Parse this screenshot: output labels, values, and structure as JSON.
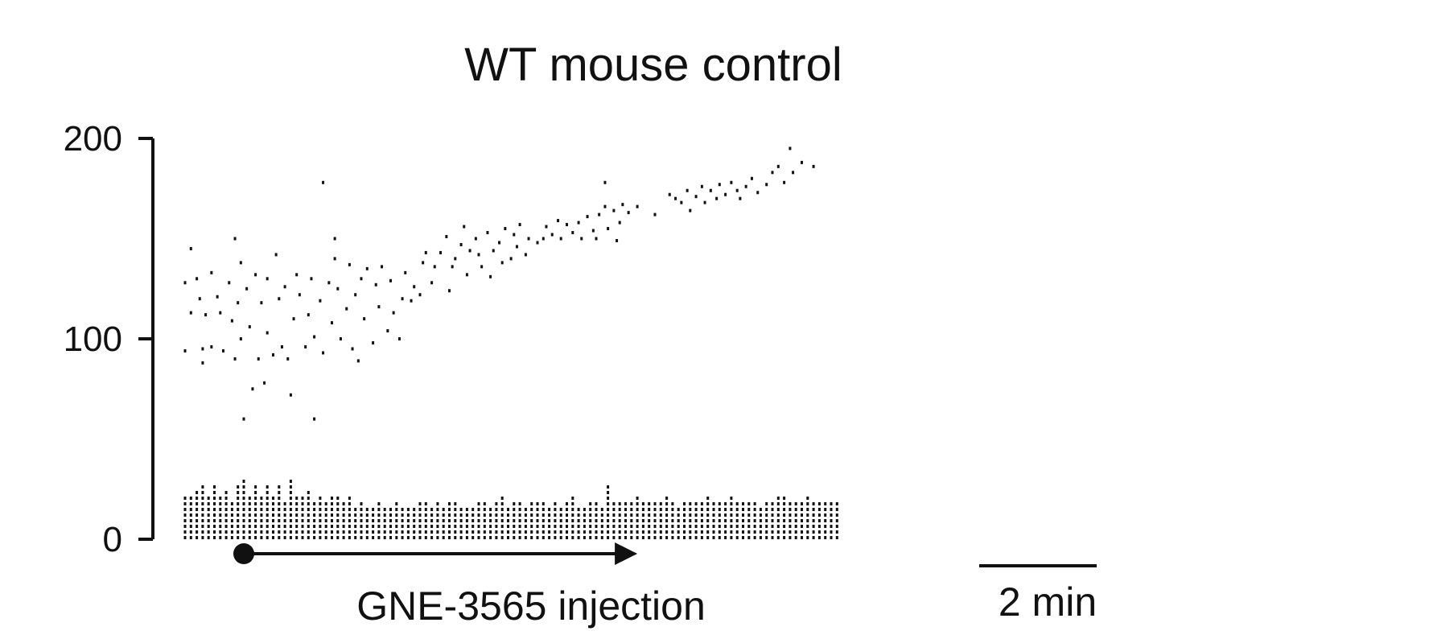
{
  "chart_data": {
    "type": "scatter",
    "title": "WT mouse control",
    "xlabel": "",
    "ylabel": "",
    "ylim": [
      0,
      200
    ],
    "yticks": [
      0,
      100,
      200
    ],
    "x_unit": "min",
    "xlim": [
      -0.25,
      12.3
    ],
    "grid": false,
    "legend": "none",
    "marker_color": "#111111",
    "annotations": {
      "injection_label": "GNE-3565 injection",
      "injection_start": 1.0,
      "injection_end": 7.7,
      "scalebar_label": "2 min",
      "scalebar_min": 2
    },
    "upper_band": [
      [
        0.0,
        128
      ],
      [
        0.0,
        94
      ],
      [
        0.1,
        113
      ],
      [
        0.1,
        145
      ],
      [
        0.2,
        130
      ],
      [
        0.25,
        120
      ],
      [
        0.3,
        95
      ],
      [
        0.3,
        88
      ],
      [
        0.35,
        112
      ],
      [
        0.45,
        133
      ],
      [
        0.45,
        96
      ],
      [
        0.55,
        121
      ],
      [
        0.6,
        113
      ],
      [
        0.65,
        94
      ],
      [
        0.75,
        128
      ],
      [
        0.8,
        109
      ],
      [
        0.85,
        150
      ],
      [
        0.85,
        90
      ],
      [
        0.9,
        118
      ],
      [
        0.95,
        138
      ],
      [
        0.95,
        100
      ],
      [
        1.0,
        60
      ],
      [
        1.05,
        125
      ],
      [
        1.1,
        106
      ],
      [
        1.15,
        75
      ],
      [
        1.2,
        132
      ],
      [
        1.25,
        90
      ],
      [
        1.3,
        118
      ],
      [
        1.35,
        78
      ],
      [
        1.4,
        130
      ],
      [
        1.4,
        103
      ],
      [
        1.5,
        92
      ],
      [
        1.55,
        142
      ],
      [
        1.6,
        120
      ],
      [
        1.65,
        96
      ],
      [
        1.7,
        126
      ],
      [
        1.75,
        90
      ],
      [
        1.8,
        72
      ],
      [
        1.85,
        110
      ],
      [
        1.9,
        132
      ],
      [
        1.95,
        122
      ],
      [
        2.05,
        96
      ],
      [
        2.1,
        112
      ],
      [
        2.15,
        130
      ],
      [
        2.2,
        60
      ],
      [
        2.2,
        101
      ],
      [
        2.3,
        119
      ],
      [
        2.35,
        178
      ],
      [
        2.35,
        93
      ],
      [
        2.45,
        128
      ],
      [
        2.5,
        108
      ],
      [
        2.55,
        150
      ],
      [
        2.55,
        140
      ],
      [
        2.6,
        125
      ],
      [
        2.65,
        100
      ],
      [
        2.75,
        115
      ],
      [
        2.8,
        137
      ],
      [
        2.85,
        95
      ],
      [
        2.9,
        122
      ],
      [
        2.95,
        89
      ],
      [
        3.0,
        130
      ],
      [
        3.05,
        110
      ],
      [
        3.1,
        135
      ],
      [
        3.2,
        98
      ],
      [
        3.25,
        127
      ],
      [
        3.3,
        116
      ],
      [
        3.35,
        136
      ],
      [
        3.45,
        104
      ],
      [
        3.5,
        129
      ],
      [
        3.55,
        113
      ],
      [
        3.65,
        100
      ],
      [
        3.7,
        120
      ],
      [
        3.75,
        133
      ],
      [
        3.85,
        119
      ],
      [
        3.9,
        126
      ],
      [
        4.0,
        122
      ],
      [
        4.05,
        138
      ],
      [
        4.1,
        143
      ],
      [
        4.2,
        128
      ],
      [
        4.25,
        136
      ],
      [
        4.35,
        143
      ],
      [
        4.45,
        151
      ],
      [
        4.5,
        124
      ],
      [
        4.55,
        136
      ],
      [
        4.6,
        140
      ],
      [
        4.7,
        147
      ],
      [
        4.75,
        156
      ],
      [
        4.8,
        132
      ],
      [
        4.85,
        144
      ],
      [
        4.95,
        150
      ],
      [
        5.0,
        142
      ],
      [
        5.05,
        136
      ],
      [
        5.15,
        153
      ],
      [
        5.2,
        131
      ],
      [
        5.25,
        144
      ],
      [
        5.35,
        148
      ],
      [
        5.4,
        138
      ],
      [
        5.45,
        155
      ],
      [
        5.55,
        140
      ],
      [
        5.6,
        152
      ],
      [
        5.65,
        146
      ],
      [
        5.7,
        157
      ],
      [
        5.8,
        142
      ],
      [
        5.85,
        150
      ],
      [
        6.0,
        148
      ],
      [
        6.1,
        150
      ],
      [
        6.15,
        156
      ],
      [
        6.25,
        152
      ],
      [
        6.35,
        159
      ],
      [
        6.4,
        150
      ],
      [
        6.5,
        157
      ],
      [
        6.6,
        153
      ],
      [
        6.7,
        158
      ],
      [
        6.75,
        150
      ],
      [
        6.85,
        161
      ],
      [
        6.95,
        154
      ],
      [
        7.0,
        150
      ],
      [
        7.05,
        162
      ],
      [
        7.15,
        178
      ],
      [
        7.15,
        166
      ],
      [
        7.2,
        155
      ],
      [
        7.3,
        164
      ],
      [
        7.35,
        149
      ],
      [
        7.4,
        158
      ],
      [
        7.45,
        167
      ],
      [
        7.55,
        163
      ],
      [
        7.7,
        166
      ],
      [
        8.0,
        162
      ],
      [
        8.25,
        172
      ],
      [
        8.35,
        170
      ],
      [
        8.45,
        168
      ],
      [
        8.55,
        174
      ],
      [
        8.6,
        164
      ],
      [
        8.7,
        171
      ],
      [
        8.8,
        176
      ],
      [
        8.85,
        168
      ],
      [
        8.95,
        174
      ],
      [
        9.05,
        170
      ],
      [
        9.1,
        177
      ],
      [
        9.2,
        172
      ],
      [
        9.3,
        178
      ],
      [
        9.4,
        174
      ],
      [
        9.45,
        170
      ],
      [
        9.55,
        176
      ],
      [
        9.65,
        180
      ],
      [
        9.75,
        173
      ],
      [
        9.9,
        177
      ],
      [
        10.0,
        183
      ],
      [
        10.1,
        186
      ],
      [
        10.2,
        178
      ],
      [
        10.3,
        195
      ],
      [
        10.35,
        183
      ],
      [
        10.5,
        188
      ],
      [
        10.7,
        186
      ]
    ],
    "lower_band": [
      [
        0.0,
        24
      ],
      [
        0.1,
        22
      ],
      [
        0.2,
        26
      ],
      [
        0.3,
        29
      ],
      [
        0.4,
        23
      ],
      [
        0.5,
        28
      ],
      [
        0.6,
        23
      ],
      [
        0.7,
        25
      ],
      [
        0.8,
        20
      ],
      [
        0.9,
        27
      ],
      [
        1.0,
        31
      ],
      [
        1.1,
        24
      ],
      [
        1.2,
        29
      ],
      [
        1.3,
        22
      ],
      [
        1.4,
        28
      ],
      [
        1.5,
        24
      ],
      [
        1.6,
        29
      ],
      [
        1.7,
        21
      ],
      [
        1.8,
        31
      ],
      [
        1.9,
        23
      ],
      [
        2.0,
        22
      ],
      [
        2.1,
        25
      ],
      [
        2.2,
        21
      ],
      [
        2.3,
        24
      ],
      [
        2.4,
        20
      ],
      [
        2.5,
        23
      ],
      [
        2.6,
        22
      ],
      [
        2.7,
        19
      ],
      [
        2.8,
        24
      ],
      [
        2.9,
        18
      ],
      [
        3.0,
        19
      ],
      [
        3.1,
        18
      ],
      [
        3.2,
        17
      ],
      [
        3.3,
        19
      ],
      [
        3.4,
        18
      ],
      [
        3.5,
        17
      ],
      [
        3.6,
        19
      ],
      [
        3.7,
        18
      ],
      [
        3.8,
        17
      ],
      [
        3.9,
        18
      ],
      [
        4.0,
        20
      ],
      [
        4.1,
        19
      ],
      [
        4.2,
        18
      ],
      [
        4.3,
        21
      ],
      [
        4.4,
        17
      ],
      [
        4.5,
        20
      ],
      [
        4.6,
        19
      ],
      [
        4.7,
        18
      ],
      [
        4.8,
        17
      ],
      [
        4.9,
        18
      ],
      [
        5.0,
        21
      ],
      [
        5.1,
        19
      ],
      [
        5.2,
        17
      ],
      [
        5.3,
        20
      ],
      [
        5.4,
        22
      ],
      [
        5.5,
        18
      ],
      [
        5.6,
        21
      ],
      [
        5.7,
        19
      ],
      [
        5.8,
        18
      ],
      [
        5.9,
        20
      ],
      [
        6.0,
        19
      ],
      [
        6.1,
        21
      ],
      [
        6.2,
        17
      ],
      [
        6.3,
        20
      ],
      [
        6.4,
        18
      ],
      [
        6.5,
        19
      ],
      [
        6.6,
        22
      ],
      [
        6.7,
        18
      ],
      [
        6.8,
        17
      ],
      [
        6.9,
        19
      ],
      [
        7.0,
        21
      ],
      [
        7.1,
        18
      ],
      [
        7.2,
        27
      ],
      [
        7.3,
        20
      ],
      [
        7.4,
        19
      ],
      [
        7.5,
        21
      ],
      [
        7.6,
        19
      ],
      [
        7.7,
        22
      ],
      [
        7.8,
        20
      ],
      [
        7.9,
        19
      ],
      [
        8.0,
        21
      ],
      [
        8.1,
        20
      ],
      [
        8.2,
        22
      ],
      [
        8.3,
        19
      ],
      [
        8.4,
        18
      ],
      [
        8.5,
        20
      ],
      [
        8.6,
        19
      ],
      [
        8.7,
        21
      ],
      [
        8.8,
        20
      ],
      [
        8.9,
        22
      ],
      [
        9.0,
        20
      ],
      [
        9.1,
        21
      ],
      [
        9.2,
        19
      ],
      [
        9.3,
        22
      ],
      [
        9.4,
        20
      ],
      [
        9.5,
        19
      ],
      [
        9.6,
        21
      ],
      [
        9.7,
        20
      ],
      [
        9.8,
        18
      ],
      [
        9.9,
        19
      ],
      [
        10.0,
        20
      ],
      [
        10.1,
        22
      ],
      [
        10.2,
        24
      ],
      [
        10.3,
        21
      ],
      [
        10.4,
        19
      ],
      [
        10.5,
        20
      ],
      [
        10.6,
        22
      ],
      [
        10.7,
        21
      ],
      [
        10.8,
        20
      ],
      [
        10.9,
        19
      ],
      [
        11.0,
        21
      ],
      [
        11.1,
        20
      ]
    ]
  }
}
